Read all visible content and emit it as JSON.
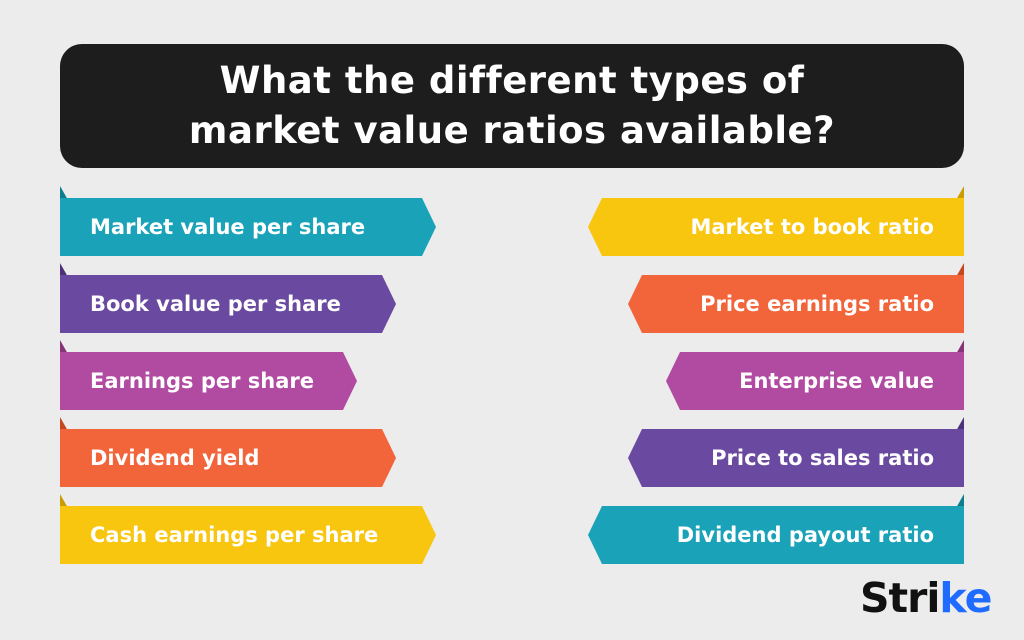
{
  "title": {
    "line1": "What the different types of",
    "line2": "market value ratios available?"
  },
  "left_items": [
    {
      "label": "Market value per share",
      "color": "#1aa3b8",
      "tab_color": "#0e7d8e"
    },
    {
      "label": "Book value per share",
      "color": "#6a4aa0",
      "tab_color": "#4d327a"
    },
    {
      "label": "Earnings per share",
      "color": "#b14aa1",
      "tab_color": "#86337a"
    },
    {
      "label": "Dividend yield",
      "color": "#f2643a",
      "tab_color": "#c44720"
    },
    {
      "label": "Cash earnings per share",
      "color": "#f8c50f",
      "tab_color": "#c99c00"
    }
  ],
  "right_items": [
    {
      "label": "Market to book ratio",
      "color": "#f8c50f",
      "tab_color": "#c99c00"
    },
    {
      "label": "Price earnings ratio",
      "color": "#f2643a",
      "tab_color": "#c44720"
    },
    {
      "label": "Enterprise value",
      "color": "#b14aa1",
      "tab_color": "#86337a"
    },
    {
      "label": "Price to sales ratio",
      "color": "#6a4aa0",
      "tab_color": "#4d327a"
    },
    {
      "label": "Dividend payout ratio",
      "color": "#1aa3b8",
      "tab_color": "#0e7d8e"
    }
  ],
  "logo": {
    "text_main": "Stri",
    "text_accent": "ke"
  }
}
